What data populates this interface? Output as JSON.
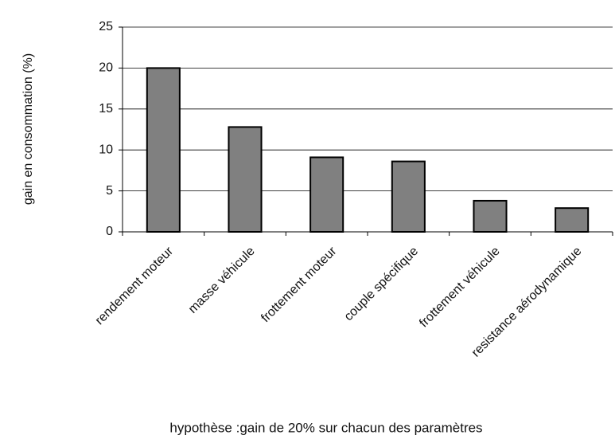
{
  "chart_data": {
    "type": "bar",
    "categories": [
      "rendement  moteur",
      "masse véhicule",
      "frottement moteur",
      "couple spécifique",
      "frottement véhicule",
      "resistance aérodynamique"
    ],
    "values": [
      20,
      12.8,
      9.1,
      8.6,
      3.8,
      2.9
    ],
    "color": "#808080",
    "ylim": [
      0,
      25
    ],
    "yticks": [
      0,
      5,
      10,
      15,
      20,
      25
    ],
    "grid": true,
    "x_label": "hypothèse :gain de 20% sur chacun des paramètres",
    "y_label": "gain en consommation (%)"
  }
}
